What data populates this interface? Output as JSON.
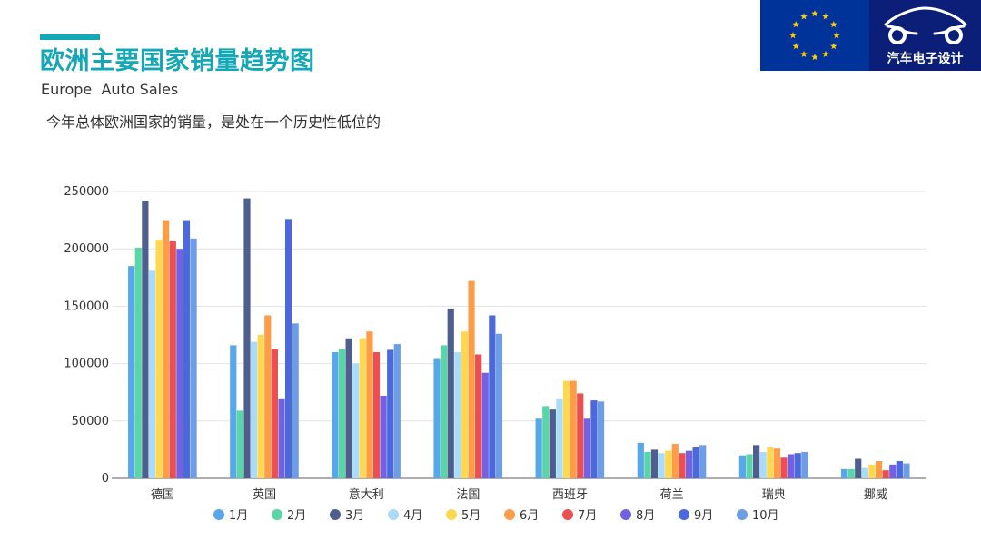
{
  "page": {
    "title": "欧洲主要国家销量趋势图",
    "subtitle": "Europe  Auto Sales",
    "description": "今年总体欧洲国家的销量，是处在一个历史性低位的",
    "brand_text": "汽车电子设计",
    "accent_color": "#14a7b6",
    "eu_flag_color": "#003399",
    "eu_star_color": "#ffcc00",
    "logo_bg_color": "#0b1f78"
  },
  "chart_data": {
    "type": "bar",
    "categories": [
      "德国",
      "英国",
      "意大利",
      "法国",
      "西班牙",
      "荷兰",
      "瑞典",
      "挪威"
    ],
    "ylim": [
      0,
      250000
    ],
    "yticks": [
      0,
      50000,
      100000,
      150000,
      200000,
      250000
    ],
    "grid": true,
    "legend_position": "bottom",
    "series": [
      {
        "name": "1月",
        "color": "#58a7ea",
        "values": [
          185000,
          116000,
          110000,
          104000,
          52000,
          31000,
          20000,
          8000
        ]
      },
      {
        "name": "2月",
        "color": "#59d5a6",
        "values": [
          201000,
          59000,
          113000,
          116000,
          63000,
          23000,
          21000,
          8000
        ]
      },
      {
        "name": "3月",
        "color": "#4e5f8f",
        "values": [
          242000,
          244000,
          122000,
          148000,
          60000,
          25000,
          29000,
          17000
        ]
      },
      {
        "name": "4月",
        "color": "#a9dcf8",
        "values": [
          181000,
          119000,
          100000,
          110000,
          69000,
          22000,
          23000,
          9000
        ]
      },
      {
        "name": "5月",
        "color": "#ffd84f",
        "values": [
          208000,
          125000,
          122000,
          128000,
          85000,
          24000,
          27000,
          12000
        ]
      },
      {
        "name": "6月",
        "color": "#ff9c47",
        "values": [
          225000,
          142000,
          128000,
          172000,
          85000,
          30000,
          26000,
          15000
        ]
      },
      {
        "name": "7月",
        "color": "#ec4f52",
        "values": [
          207000,
          113000,
          110000,
          108000,
          74000,
          22000,
          18000,
          7000
        ]
      },
      {
        "name": "8月",
        "color": "#7261e3",
        "values": [
          200000,
          69000,
          72000,
          92000,
          52000,
          24000,
          21000,
          12000
        ]
      },
      {
        "name": "9月",
        "color": "#4b69dc",
        "values": [
          225000,
          226000,
          112000,
          142000,
          68000,
          27000,
          22000,
          15000
        ]
      },
      {
        "name": "10月",
        "color": "#6d9de6",
        "values": [
          209000,
          135000,
          117000,
          126000,
          67000,
          29000,
          23000,
          13000
        ]
      }
    ]
  }
}
